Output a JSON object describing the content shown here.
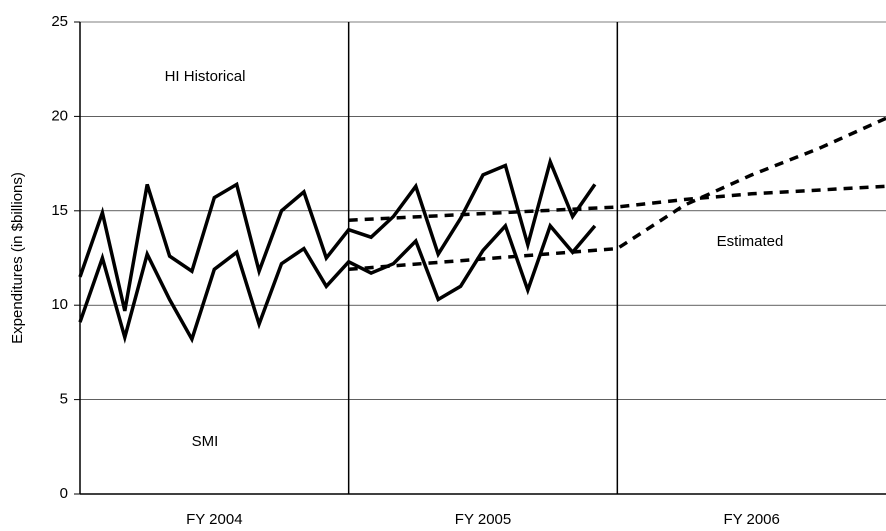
{
  "chart_data": {
    "type": "line",
    "y_label": "Expenditures (in $billions)",
    "categories": [
      "FY 2004",
      "FY 2005",
      "FY 2006"
    ],
    "xlim": [
      0,
      36
    ],
    "ylim": [
      0,
      25
    ],
    "yticks": [
      0,
      5,
      10,
      15,
      20,
      25
    ],
    "grid": true,
    "annotations": [
      "HI Historical",
      "SMI",
      "Estimated"
    ],
    "series": [
      {
        "color": "#000000",
        "style": "solid",
        "x": [
          0,
          1,
          2,
          3,
          4,
          5,
          6,
          7,
          8,
          9,
          10,
          11,
          12,
          13,
          14,
          15,
          16,
          17,
          18,
          19,
          20,
          21,
          22,
          23
        ],
        "values": [
          11.5,
          14.9,
          9.7,
          16.4,
          12.6,
          11.8,
          15.7,
          16.4,
          11.8,
          15.0,
          16.0,
          12.5,
          14.0,
          13.6,
          14.7,
          16.3,
          12.7,
          14.6,
          16.9,
          17.4,
          13.2,
          17.6,
          14.7,
          16.4
        ]
      },
      {
        "color": "#000000",
        "style": "solid",
        "x": [
          0,
          1,
          2,
          3,
          4,
          5,
          6,
          7,
          8,
          9,
          10,
          11,
          12,
          13,
          14,
          15,
          16,
          17,
          18,
          19,
          20,
          21,
          22,
          23
        ],
        "values": [
          9.1,
          12.5,
          8.3,
          12.7,
          10.3,
          8.2,
          11.9,
          12.8,
          9.0,
          12.2,
          13.0,
          11.0,
          12.3,
          11.7,
          12.2,
          13.4,
          10.3,
          11.0,
          12.9,
          14.2,
          10.8,
          14.2,
          12.8,
          14.2
        ]
      },
      {
        "color": "#000000",
        "style": "dashed",
        "x": [
          12,
          24,
          27,
          30,
          36
        ],
        "values": [
          14.5,
          15.2,
          15.6,
          15.9,
          16.3
        ]
      },
      {
        "color": "#000000",
        "style": "dashed",
        "x": [
          12,
          24,
          27,
          30,
          33,
          36
        ],
        "values": [
          11.9,
          13.0,
          15.3,
          16.9,
          18.3,
          19.9
        ]
      }
    ]
  }
}
